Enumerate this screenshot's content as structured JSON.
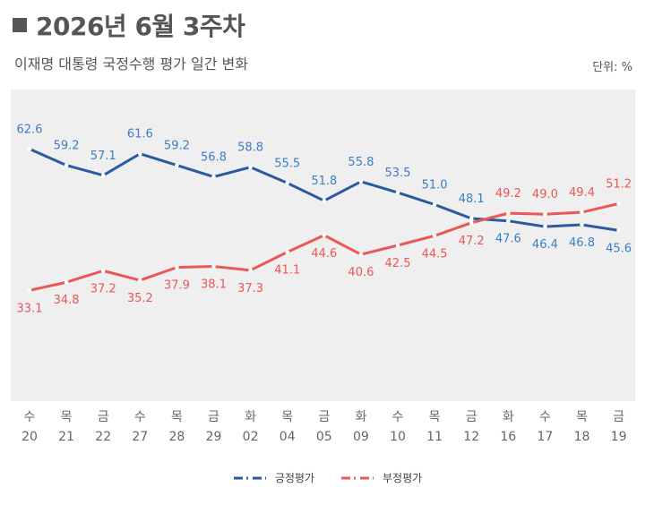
{
  "header": {
    "title": "2026년 6월 3주차",
    "subtitle": "이재명 대통령 국정수행 평가 일간 변화",
    "unit": "단위: %"
  },
  "colors": {
    "positive": "#2b5a9e",
    "negative": "#ea5757",
    "positive_label": "#3c7dc4",
    "negative_label": "#ea5757",
    "plot_bg": "#efefef"
  },
  "chart_data": {
    "type": "line",
    "categories": [
      {
        "day": "수",
        "date": "20"
      },
      {
        "day": "목",
        "date": "21"
      },
      {
        "day": "금",
        "date": "22"
      },
      {
        "day": "수",
        "date": "27"
      },
      {
        "day": "목",
        "date": "28"
      },
      {
        "day": "금",
        "date": "29"
      },
      {
        "day": "화",
        "date": "02"
      },
      {
        "day": "목",
        "date": "04"
      },
      {
        "day": "금",
        "date": "05"
      },
      {
        "day": "화",
        "date": "09"
      },
      {
        "day": "수",
        "date": "10"
      },
      {
        "day": "목",
        "date": "11"
      },
      {
        "day": "금",
        "date": "12"
      },
      {
        "day": "화",
        "date": "16"
      },
      {
        "day": "수",
        "date": "17"
      },
      {
        "day": "목",
        "date": "18"
      },
      {
        "day": "금",
        "date": "19"
      }
    ],
    "series": [
      {
        "name": "긍정평가",
        "values": [
          62.6,
          59.2,
          57.1,
          61.6,
          59.2,
          56.8,
          58.8,
          55.5,
          51.8,
          55.8,
          53.5,
          51.0,
          48.1,
          47.6,
          46.4,
          46.8,
          45.6
        ]
      },
      {
        "name": "부정평가",
        "values": [
          33.1,
          34.8,
          37.2,
          35.2,
          37.9,
          38.1,
          37.3,
          41.1,
          44.6,
          40.6,
          42.5,
          44.5,
          47.2,
          49.2,
          49.0,
          49.4,
          51.2
        ]
      }
    ],
    "ylim": [
      10,
      75
    ],
    "grid": false,
    "legend_position": "bottom-center"
  }
}
